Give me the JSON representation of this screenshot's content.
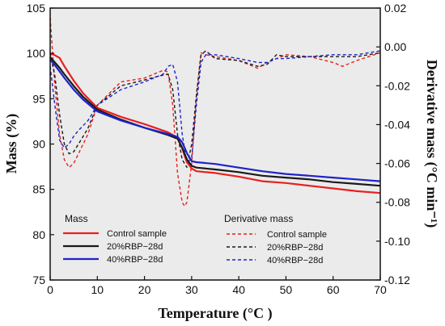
{
  "chart_data": {
    "type": "line",
    "xlabel": "Temperature (°C )",
    "ylabel_left": "Mass (%)",
    "ylabel_right": "Derivative mass (°C min⁻¹)",
    "xlim": [
      0,
      70
    ],
    "ylim_left": [
      75,
      105
    ],
    "ylim_right": [
      -0.12,
      0.02
    ],
    "x_ticks": [
      "0",
      "10",
      "20",
      "30",
      "40",
      "50",
      "60",
      "70"
    ],
    "y_left_ticks": [
      "75",
      "80",
      "85",
      "90",
      "95",
      "100",
      "105"
    ],
    "y_right_ticks": [
      "-0.12",
      "-0.10",
      "-0.08",
      "-0.06",
      "-0.04",
      "-0.02",
      "0.00",
      "0.02"
    ],
    "grid": false,
    "legend_mass_title": "Mass",
    "legend_deriv_title": "Derivative mass",
    "colors": {
      "control": "#e8201f",
      "rbp20": "#1a1a1a",
      "rbp40": "#1f22c9",
      "plot_bg": "#ebebeb"
    },
    "series": [
      {
        "name": "Control sample",
        "axis": "left",
        "style": "solid",
        "color_key": "control",
        "x": [
          0,
          1,
          2,
          3,
          5,
          7,
          10,
          15,
          20,
          25,
          27,
          28,
          29,
          30,
          31,
          35,
          40,
          45,
          50,
          55,
          60,
          65,
          70
        ],
        "y": [
          100,
          99.8,
          99.5,
          98.6,
          97.0,
          95.6,
          94.0,
          93.0,
          92.2,
          91.3,
          90.7,
          89.5,
          88.0,
          87.3,
          87.0,
          86.8,
          86.4,
          85.9,
          85.7,
          85.4,
          85.1,
          84.8,
          84.6
        ]
      },
      {
        "name": "20%RBP−28d",
        "axis": "left",
        "style": "solid",
        "color_key": "rbp20",
        "x": [
          0,
          1,
          2,
          3,
          5,
          7,
          10,
          15,
          20,
          25,
          27,
          28,
          29,
          30,
          31,
          35,
          40,
          45,
          50,
          55,
          60,
          65,
          70
        ],
        "y": [
          99.6,
          99.0,
          98.4,
          97.7,
          96.4,
          95.2,
          93.8,
          92.7,
          91.8,
          91.0,
          90.6,
          89.6,
          88.3,
          87.6,
          87.4,
          87.2,
          86.9,
          86.5,
          86.3,
          86.1,
          85.8,
          85.6,
          85.4
        ]
      },
      {
        "name": "40%RBP−28d",
        "axis": "left",
        "style": "solid",
        "color_key": "rbp40",
        "x": [
          0,
          1,
          2,
          3,
          5,
          7,
          10,
          15,
          20,
          25,
          27,
          28,
          29,
          30,
          31,
          35,
          40,
          45,
          50,
          55,
          60,
          65,
          70
        ],
        "y": [
          99.3,
          98.7,
          98.0,
          97.3,
          96.0,
          94.9,
          93.6,
          92.6,
          91.8,
          91.1,
          90.8,
          90.2,
          89.0,
          88.1,
          88.0,
          87.8,
          87.4,
          87.0,
          86.7,
          86.5,
          86.3,
          86.1,
          85.9
        ]
      },
      {
        "name": "Control sample",
        "axis": "right",
        "style": "dashed",
        "color_key": "control",
        "x": [
          0,
          1,
          2,
          3,
          4,
          5,
          6,
          8,
          10,
          15,
          20,
          24,
          25,
          26,
          27,
          28,
          28.5,
          29,
          30,
          31,
          32,
          33,
          35,
          40,
          44,
          46,
          48,
          50,
          55,
          60,
          62,
          65,
          70
        ],
        "y": [
          0.015,
          -0.02,
          -0.045,
          -0.058,
          -0.062,
          -0.06,
          -0.055,
          -0.045,
          -0.03,
          -0.018,
          -0.016,
          -0.012,
          -0.013,
          -0.03,
          -0.065,
          -0.08,
          -0.082,
          -0.08,
          -0.06,
          -0.025,
          -0.003,
          -0.004,
          -0.005,
          -0.007,
          -0.011,
          -0.008,
          -0.006,
          -0.004,
          -0.005,
          -0.008,
          -0.01,
          -0.007,
          -0.003
        ]
      },
      {
        "name": "20%RBP−28d",
        "axis": "right",
        "style": "dashed",
        "color_key": "rbp20",
        "x": [
          0,
          1,
          2,
          3,
          4,
          5,
          6,
          8,
          10,
          15,
          20,
          23,
          25,
          26,
          27,
          28,
          29,
          30,
          31,
          32,
          33,
          35,
          40,
          44,
          46,
          48,
          50,
          55,
          60,
          65,
          70
        ],
        "y": [
          -0.003,
          -0.015,
          -0.035,
          -0.05,
          -0.055,
          -0.054,
          -0.05,
          -0.042,
          -0.03,
          -0.02,
          -0.017,
          -0.015,
          -0.014,
          -0.022,
          -0.045,
          -0.058,
          -0.062,
          -0.05,
          -0.025,
          -0.004,
          -0.002,
          -0.006,
          -0.007,
          -0.01,
          -0.009,
          -0.004,
          -0.005,
          -0.005,
          -0.005,
          -0.005,
          -0.003
        ]
      },
      {
        "name": "40%RBP−28d",
        "axis": "right",
        "style": "dashed",
        "color_key": "rbp40",
        "x": [
          0,
          1,
          2,
          3,
          4,
          5,
          6,
          8,
          10,
          15,
          20,
          24,
          25,
          26,
          27,
          28,
          29,
          30,
          31,
          32,
          33,
          35,
          40,
          44,
          46,
          48,
          50,
          55,
          60,
          65,
          70
        ],
        "y": [
          -0.01,
          -0.03,
          -0.048,
          -0.052,
          -0.05,
          -0.046,
          -0.043,
          -0.038,
          -0.03,
          -0.022,
          -0.018,
          -0.014,
          -0.01,
          -0.009,
          -0.018,
          -0.045,
          -0.06,
          -0.057,
          -0.03,
          -0.008,
          -0.004,
          -0.004,
          -0.006,
          -0.008,
          -0.008,
          -0.006,
          -0.006,
          -0.005,
          -0.004,
          -0.004,
          -0.002
        ]
      }
    ]
  }
}
